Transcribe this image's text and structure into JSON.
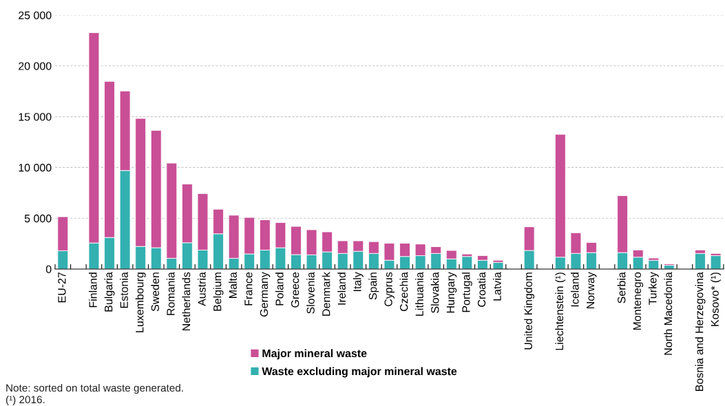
{
  "chart_data": {
    "type": "bar",
    "stacked": true,
    "categories": [
      "EU-27",
      null,
      "Finland",
      "Bulgaria",
      "Estonia",
      "Luxembourg",
      "Sweden",
      "Romania",
      "Netherlands",
      "Austria",
      "Belgium",
      "Malta",
      "France",
      "Germany",
      "Poland",
      "Greece",
      "Slovenia",
      "Denmark",
      "Ireland",
      "Italy",
      "Spain",
      "Cyprus",
      "Czechia",
      "Lithuania",
      "Slovakia",
      "Hungary",
      "Portugal",
      "Croatia",
      "Latvia",
      null,
      "United Kingdom",
      null,
      "Liechtenstein (¹)",
      "Iceland",
      "Norway",
      null,
      "Serbia",
      "Montenegro",
      "Turkey",
      "North Macedonia",
      null,
      "Bosnia and Herzegovina",
      "Kosovo* (¹)"
    ],
    "series": [
      {
        "name": "Waste excluding major mineral waste",
        "color": "#33b0b0",
        "values": [
          1800,
          null,
          2570,
          3110,
          9700,
          2230,
          2100,
          1060,
          2590,
          1870,
          3470,
          1060,
          1490,
          1870,
          2100,
          1420,
          1400,
          1690,
          1540,
          1750,
          1540,
          870,
          1240,
          1320,
          1540,
          1000,
          1240,
          870,
          660,
          null,
          1830,
          null,
          1170,
          1540,
          1620,
          null,
          1620,
          1170,
          870,
          370,
          null,
          1540,
          1320
        ]
      },
      {
        "name": "Major mineral waste",
        "color": "#c94f96",
        "values": [
          3350,
          null,
          20700,
          15370,
          7830,
          12600,
          11550,
          9370,
          5780,
          5560,
          2420,
          4240,
          3590,
          2980,
          2480,
          2780,
          2470,
          1970,
          1240,
          1030,
          1160,
          1670,
          1300,
          1140,
          660,
          830,
          240,
          450,
          210,
          null,
          2330,
          null,
          12100,
          2030,
          1000,
          null,
          5610,
          710,
          215,
          130,
          null,
          340,
          215
        ]
      }
    ],
    "ylim": [
      0,
      25000
    ],
    "yticks": [
      {
        "value": 0,
        "label": "0"
      },
      {
        "value": 5000,
        "label": "5 000"
      },
      {
        "value": 10000,
        "label": "10 000"
      },
      {
        "value": 15000,
        "label": "15 000"
      },
      {
        "value": 20000,
        "label": "20 000"
      },
      {
        "value": 25000,
        "label": "25 000"
      }
    ],
    "grid": "y",
    "legend": "bottom",
    "annotations": [
      "Note: sorted on total waste generated.",
      "(¹) 2016."
    ]
  }
}
